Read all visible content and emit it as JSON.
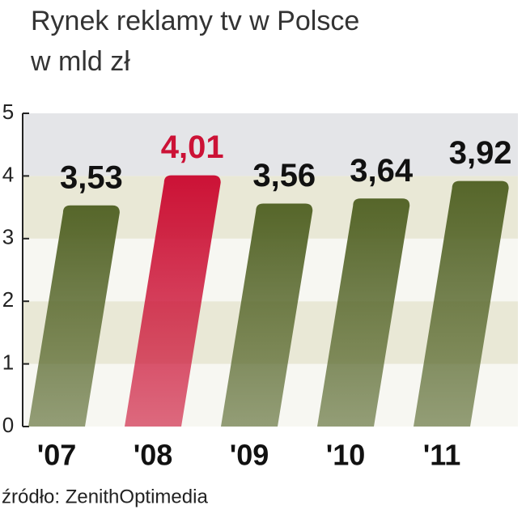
{
  "chart_data": {
    "type": "bar",
    "title": "Rynek reklamy tv w Polsce",
    "subtitle": "w mld zł",
    "categories": [
      "'07",
      "'08",
      "'09",
      "'10",
      "'11"
    ],
    "values": [
      3.53,
      4.01,
      3.56,
      3.64,
      3.92
    ],
    "value_labels": [
      "3,53",
      "4,01",
      "3,56",
      "3,64",
      "3,92"
    ],
    "colors": [
      "#56662a",
      "#cc1236",
      "#56662a",
      "#56662a",
      "#56662a"
    ],
    "value_label_colors": [
      "#111111",
      "#cc1236",
      "#111111",
      "#111111",
      "#111111"
    ],
    "ylim": [
      0,
      5
    ],
    "yticks": [
      0,
      1,
      2,
      3,
      4,
      5
    ],
    "source": "źródło: ZenithOptimedia"
  }
}
